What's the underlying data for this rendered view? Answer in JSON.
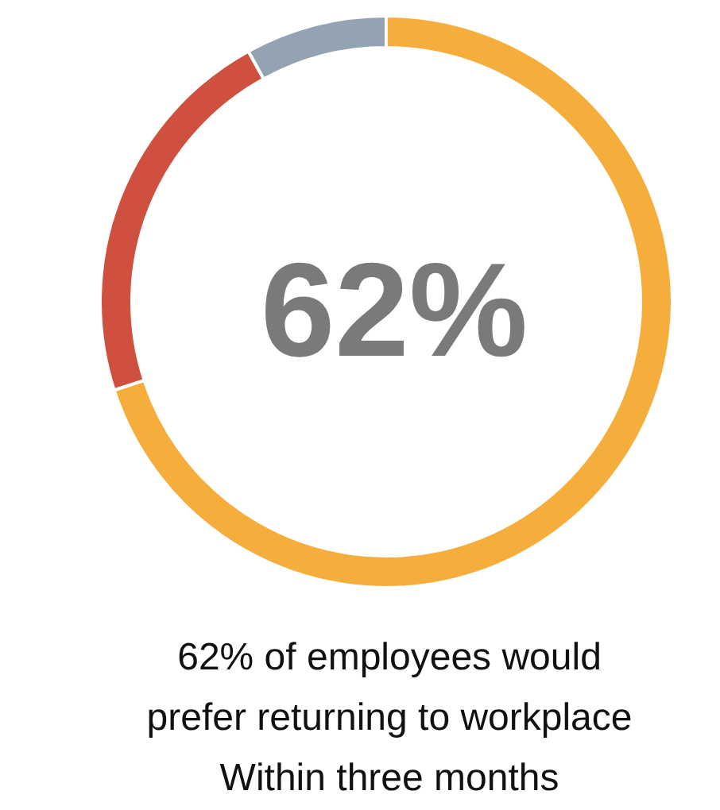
{
  "chart_data": {
    "type": "donut",
    "title": "62%",
    "subtitle": "62% of employees would\nprefer returning to workplace\nWithin three months",
    "categories": [
      null,
      null,
      null
    ],
    "values": [
      70,
      22,
      8
    ],
    "colors": [
      "#f5ad3c",
      "#d05040",
      "#94a3b3"
    ]
  }
}
